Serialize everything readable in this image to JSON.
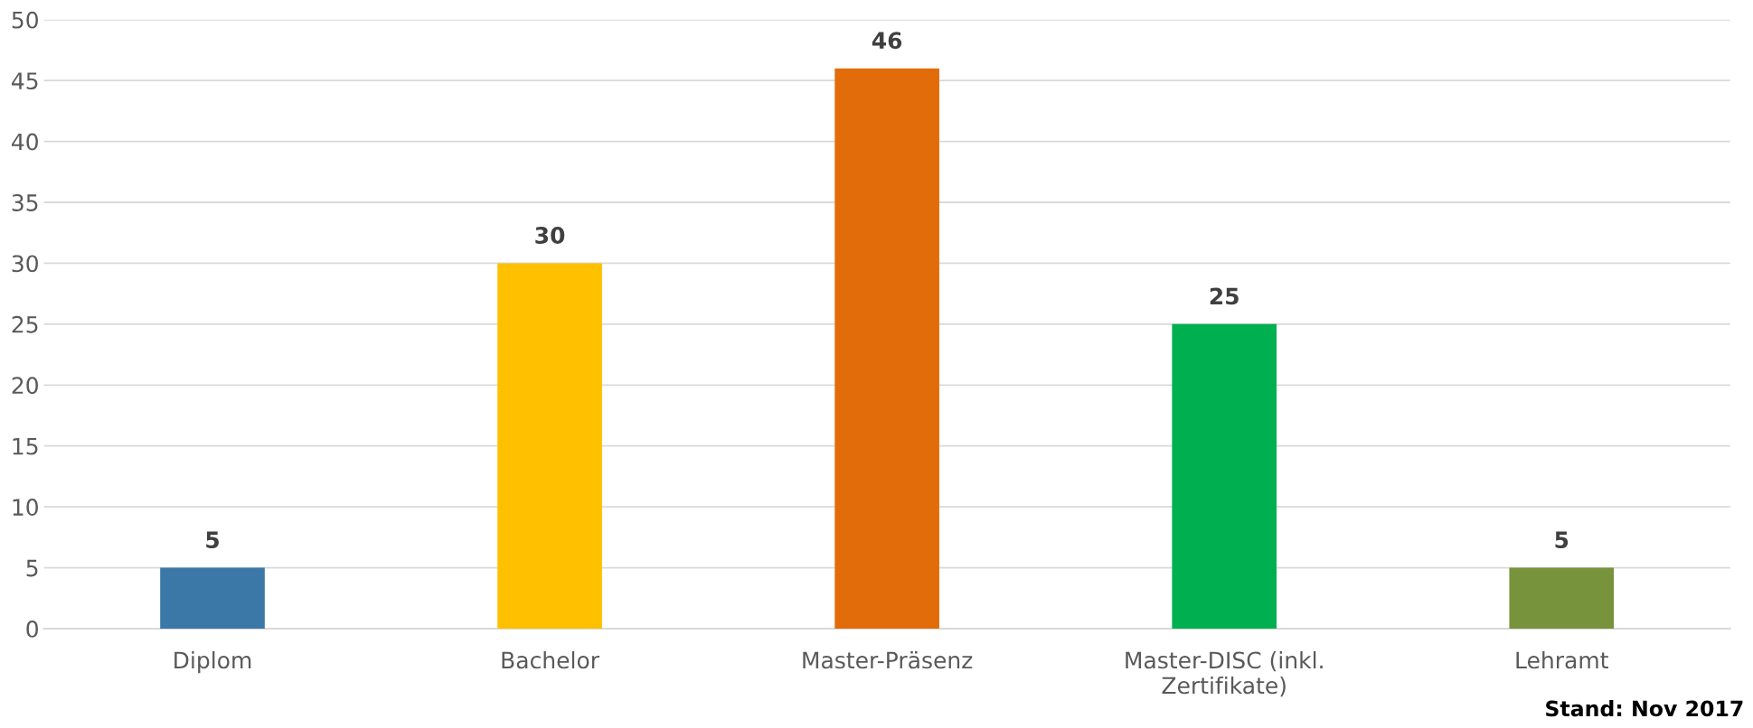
{
  "chart_data": {
    "type": "bar",
    "categories": [
      "Diplom",
      "Bachelor",
      "Master-Präsenz",
      "Master-DISC (inkl. Zertifikate)",
      "Lehramt"
    ],
    "values": [
      5,
      30,
      46,
      25,
      5
    ],
    "colors": [
      "#3b78a8",
      "#ffc000",
      "#e36c0a",
      "#00b050",
      "#77933c"
    ],
    "ylim": [
      0,
      50
    ],
    "yticks": [
      0,
      5,
      10,
      15,
      20,
      25,
      30,
      35,
      40,
      45,
      50
    ],
    "grid": "y",
    "data_labels": true,
    "annotations": [
      "Stand: Nov 2017"
    ]
  }
}
